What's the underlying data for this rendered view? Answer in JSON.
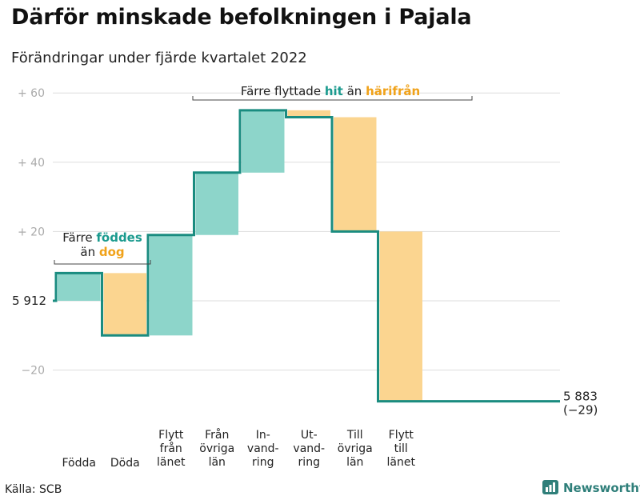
{
  "title": "Därför minskade befolkningen i Pajala",
  "subtitle": "Förändringar under fjärde kvartalet 2022",
  "source": "Källa: SCB",
  "brand": "Newsworthy",
  "colors": {
    "positive_fill": "#8dd5ca",
    "negative_fill": "#fbd590",
    "line": "#1a8c80",
    "accent_teal": "#1a9a8e",
    "accent_orange": "#f0a21a",
    "grid": "#dddddd"
  },
  "annotations": {
    "births": {
      "line1": "Färre ",
      "line1_hl": "föddes",
      "line2": "än ",
      "line2_hl": "dog"
    },
    "moves": {
      "text": "Färre flyttade ",
      "hl1": "hit",
      "mid": " än ",
      "hl2": "härifrån"
    }
  },
  "chart_data": {
    "type": "waterfall",
    "title": "Därför minskade befolkningen i Pajala",
    "subtitle": "Förändringar under fjärde kvartalet 2022",
    "y_tick_labels": [
      "+ 60",
      "+ 40",
      "+ 20",
      "5 912",
      "−20"
    ],
    "y_ticks": [
      60,
      40,
      20,
      0,
      -20
    ],
    "ylim": [
      -34,
      62
    ],
    "start": {
      "label": "5 912",
      "value": 5912
    },
    "end": {
      "label": "5 883",
      "change_label": "(−29)",
      "value": 5883,
      "change": -29
    },
    "steps": [
      {
        "label": [
          "Födda"
        ],
        "value": 8
      },
      {
        "label": [
          "Döda"
        ],
        "value": -18
      },
      {
        "label": [
          "Flytt",
          "från",
          "länet"
        ],
        "value": 29
      },
      {
        "label": [
          "Från",
          "övriga",
          "län"
        ],
        "value": 18
      },
      {
        "label": [
          "In-",
          "vand-",
          "ring"
        ],
        "value": 18
      },
      {
        "label": [
          "Ut-",
          "vand-",
          "ring"
        ],
        "value": -2
      },
      {
        "label": [
          "Till",
          "övriga",
          "län"
        ],
        "value": -33
      },
      {
        "label": [
          "Flytt",
          "till",
          "länet"
        ],
        "value": -49
      }
    ],
    "grid": true
  }
}
